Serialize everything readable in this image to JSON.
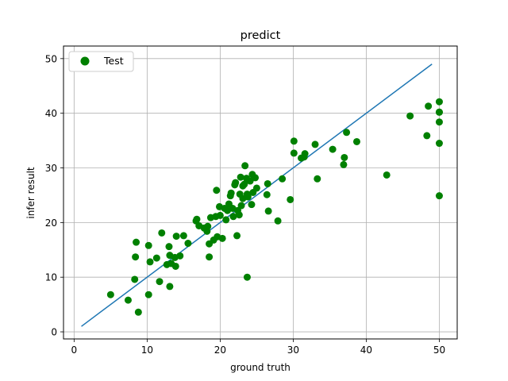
{
  "chart_data": {
    "type": "scatter",
    "title": "predict",
    "xlabel": "ground truth",
    "ylabel": "infer result",
    "xlim": [
      -1.45,
      52.45
    ],
    "ylim": [
      -1.3,
      52.3
    ],
    "xticks": [
      0,
      10,
      20,
      30,
      40,
      50
    ],
    "yticks": [
      0,
      10,
      20,
      30,
      40,
      50
    ],
    "grid": true,
    "legend_position": "upper left",
    "colors": {
      "scatter": "#008000",
      "line": "#1f77b4",
      "grid": "#b0b0b0"
    },
    "series": [
      {
        "name": "Test",
        "kind": "scatter",
        "x": [
          5.0,
          7.4,
          8.3,
          8.4,
          8.5,
          8.8,
          10.2,
          10.2,
          10.4,
          11.3,
          11.7,
          12.0,
          12.7,
          13.0,
          13.1,
          13.1,
          13.3,
          13.8,
          13.9,
          14.0,
          14.5,
          15.0,
          15.6,
          16.7,
          16.8,
          17.1,
          17.8,
          18.2,
          18.3,
          18.5,
          18.5,
          18.7,
          19.1,
          19.4,
          19.5,
          19.6,
          19.9,
          20.0,
          20.3,
          20.6,
          20.8,
          21.0,
          21.2,
          21.4,
          21.5,
          21.7,
          21.8,
          22.0,
          22.1,
          22.3,
          22.4,
          22.6,
          22.7,
          22.8,
          22.9,
          23.1,
          23.1,
          23.3,
          23.4,
          23.6,
          23.7,
          23.8,
          24.1,
          24.3,
          24.4,
          24.5,
          24.8,
          25.0,
          26.4,
          26.5,
          26.6,
          27.9,
          28.5,
          29.6,
          30.1,
          30.1,
          31.1,
          31.5,
          31.6,
          33.0,
          33.3,
          35.4,
          36.9,
          37.0,
          37.3,
          38.7,
          42.8,
          46.0,
          48.3,
          48.5,
          50.0,
          50.0,
          50.0,
          50.0,
          50.0,
          50.0,
          23.7
        ],
        "y": [
          6.8,
          5.8,
          9.6,
          13.7,
          16.4,
          3.6,
          6.8,
          15.8,
          12.8,
          13.5,
          9.2,
          18.1,
          12.3,
          15.6,
          8.3,
          14.0,
          12.5,
          13.6,
          12.0,
          17.5,
          13.9,
          17.6,
          16.2,
          20.3,
          20.6,
          19.4,
          19.0,
          18.4,
          19.3,
          16.1,
          13.7,
          20.9,
          16.8,
          21.1,
          25.9,
          17.4,
          22.9,
          21.3,
          17.1,
          22.6,
          20.5,
          22.2,
          23.4,
          24.9,
          25.4,
          22.6,
          21.1,
          26.9,
          27.3,
          17.6,
          22.2,
          21.4,
          25.2,
          28.3,
          23.1,
          24.4,
          26.7,
          27.0,
          30.4,
          28.1,
          25.2,
          24.7,
          27.6,
          23.3,
          28.8,
          25.5,
          28.2,
          26.3,
          25.1,
          27.1,
          22.1,
          20.3,
          28.0,
          24.2,
          34.9,
          32.7,
          31.8,
          32.0,
          32.6,
          34.3,
          28.0,
          33.4,
          30.6,
          31.9,
          36.5,
          34.8,
          28.7,
          39.5,
          35.9,
          41.3,
          42.1,
          40.2,
          38.4,
          34.5,
          24.9,
          40.2,
          10.0
        ]
      },
      {
        "name": "",
        "kind": "line",
        "x": [
          1,
          49
        ],
        "y": [
          1,
          49
        ]
      }
    ]
  }
}
